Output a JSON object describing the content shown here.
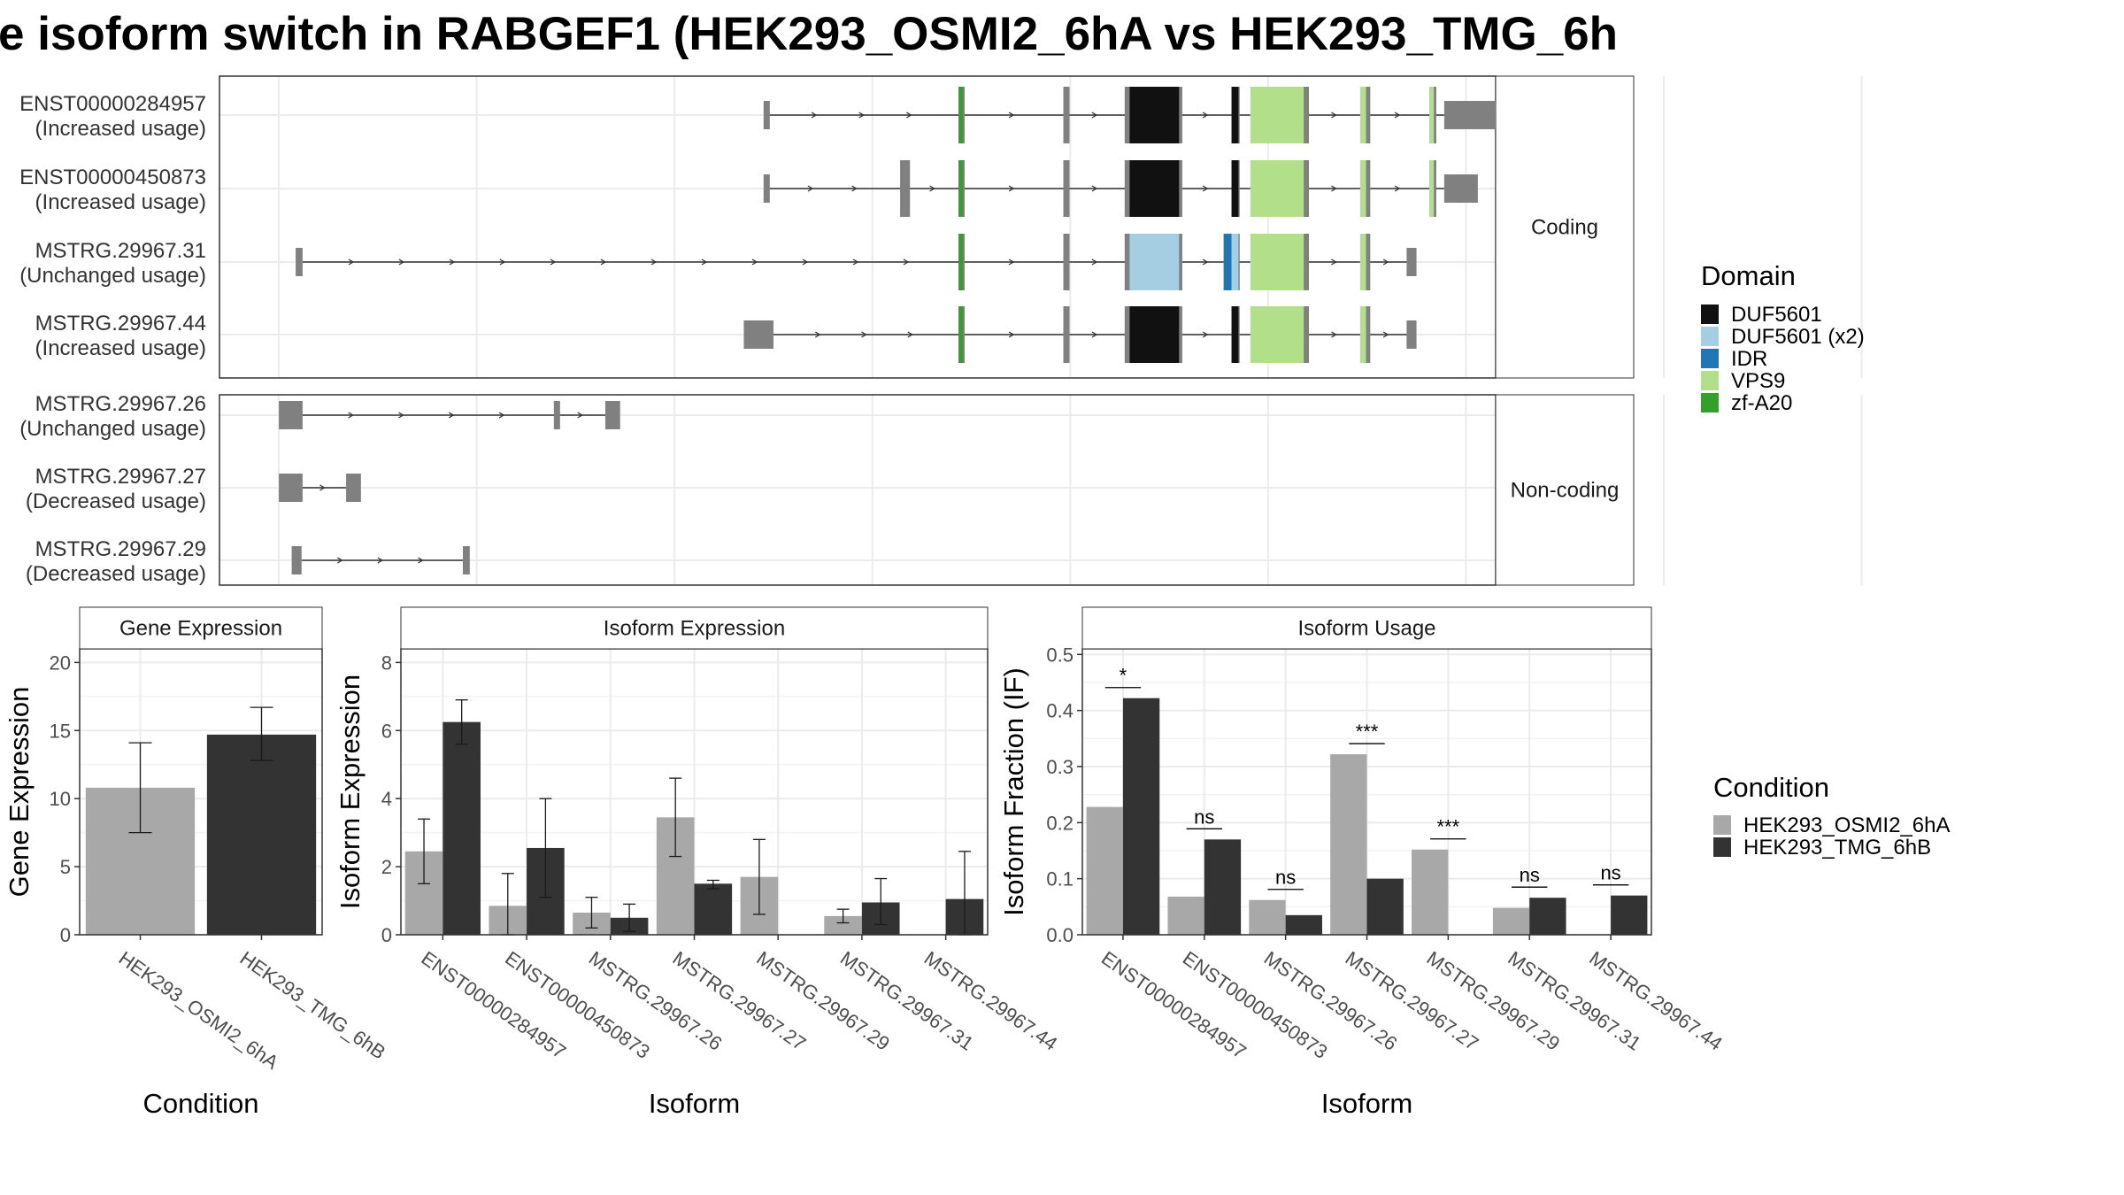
{
  "title": "e isoform switch in RABGEF1 (HEK293_OSMI2_6hA vs HEK293_TMG_6h",
  "colors": {
    "cond_a": "#a8a8a8",
    "cond_b": "#333333",
    "exon": "#808080",
    "DUF5601": "#111111",
    "DUF5601 (x2)": "#a6cee3",
    "IDR": "#1f78b4",
    "VPS9": "#b2df8a",
    "zf-A20": "#33a02c"
  },
  "structure": {
    "facets": [
      "Coding",
      "Non-coding"
    ],
    "x_breaks": [
      0.2,
      0.4,
      0.6,
      0.8,
      1.0,
      1.2,
      1.4,
      1.6,
      1.8
    ],
    "x_range": [
      0.14,
      1.43
    ],
    "transcripts": [
      {
        "id": "ENST00000284957",
        "usage": "(Increased usage)",
        "facet": "Coding",
        "exons": [
          [
            0.69,
            0.695
          ],
          [
            0.887,
            0.892
          ],
          [
            0.993,
            0.998
          ],
          [
            1.055,
            1.06
          ],
          [
            1.107,
            1.112
          ],
          [
            1.165,
            1.17
          ],
          [
            1.235,
            1.24
          ],
          [
            1.297,
            1.302
          ],
          [
            1.363,
            1.37
          ],
          [
            1.378,
            1.43
          ]
        ],
        "domains": [
          {
            "name": "zf-A20",
            "x": [
              0.887,
              0.891
            ]
          },
          {
            "name": "DUF5601",
            "x": [
              1.06,
              1.11
            ]
          },
          {
            "name": "DUF5601",
            "x": [
              1.163,
              1.17
            ]
          },
          {
            "name": "VPS9",
            "x": [
              1.182,
              1.236
            ]
          },
          {
            "name": "VPS9",
            "x": [
              1.293,
              1.299
            ]
          },
          {
            "name": "VPS9",
            "x": [
              1.363,
              1.366
            ]
          }
        ]
      },
      {
        "id": "ENST00000450873",
        "usage": "(Increased usage)",
        "facet": "Coding",
        "exons": [
          [
            0.69,
            0.695
          ],
          [
            0.828,
            0.838
          ],
          [
            0.887,
            0.892
          ],
          [
            0.993,
            0.998
          ],
          [
            1.055,
            1.06
          ],
          [
            1.107,
            1.112
          ],
          [
            1.165,
            1.17
          ],
          [
            1.235,
            1.24
          ],
          [
            1.297,
            1.302
          ],
          [
            1.363,
            1.37
          ],
          [
            1.378,
            1.412
          ]
        ],
        "domains": [
          {
            "name": "zf-A20",
            "x": [
              0.887,
              0.891
            ]
          },
          {
            "name": "DUF5601",
            "x": [
              1.06,
              1.11
            ]
          },
          {
            "name": "DUF5601",
            "x": [
              1.163,
              1.17
            ]
          },
          {
            "name": "VPS9",
            "x": [
              1.182,
              1.236
            ]
          },
          {
            "name": "VPS9",
            "x": [
              1.293,
              1.299
            ]
          },
          {
            "name": "VPS9",
            "x": [
              1.363,
              1.366
            ]
          }
        ]
      },
      {
        "id": "MSTRG.29967.31",
        "usage": "(Unchanged usage)",
        "facet": "Coding",
        "exons": [
          [
            0.217,
            0.224
          ],
          [
            0.887,
            0.892
          ],
          [
            0.993,
            0.998
          ],
          [
            1.055,
            1.06
          ],
          [
            1.107,
            1.112
          ],
          [
            1.165,
            1.17
          ],
          [
            1.235,
            1.24
          ],
          [
            1.297,
            1.302
          ],
          [
            1.34,
            1.35
          ]
        ],
        "domains": [
          {
            "name": "zf-A20",
            "x": [
              0.887,
              0.891
            ]
          },
          {
            "name": "DUF5601 (x2)",
            "x": [
              1.06,
              1.11
            ]
          },
          {
            "name": "IDR",
            "x": [
              1.155,
              1.165
            ]
          },
          {
            "name": "DUF5601 (x2)",
            "x": [
              1.163,
              1.17
            ]
          },
          {
            "name": "VPS9",
            "x": [
              1.182,
              1.236
            ]
          },
          {
            "name": "VPS9",
            "x": [
              1.293,
              1.299
            ]
          }
        ]
      },
      {
        "id": "MSTRG.29967.44",
        "usage": "(Increased usage)",
        "facet": "Coding",
        "exons": [
          [
            0.67,
            0.7
          ],
          [
            0.887,
            0.892
          ],
          [
            0.993,
            0.998
          ],
          [
            1.055,
            1.06
          ],
          [
            1.107,
            1.112
          ],
          [
            1.165,
            1.17
          ],
          [
            1.235,
            1.24
          ],
          [
            1.297,
            1.302
          ],
          [
            1.34,
            1.35
          ]
        ],
        "domains": [
          {
            "name": "zf-A20",
            "x": [
              0.887,
              0.891
            ]
          },
          {
            "name": "DUF5601",
            "x": [
              1.06,
              1.11
            ]
          },
          {
            "name": "DUF5601",
            "x": [
              1.163,
              1.17
            ]
          },
          {
            "name": "VPS9",
            "x": [
              1.182,
              1.236
            ]
          },
          {
            "name": "VPS9",
            "x": [
              1.293,
              1.299
            ]
          }
        ]
      },
      {
        "id": "MSTRG.29967.26",
        "usage": "(Unchanged usage)",
        "facet": "Non-coding",
        "exons": [
          [
            0.2,
            0.224
          ],
          [
            0.478,
            0.483
          ],
          [
            0.53,
            0.545
          ]
        ],
        "domains": []
      },
      {
        "id": "MSTRG.29967.27",
        "usage": "(Decreased usage)",
        "facet": "Non-coding",
        "exons": [
          [
            0.2,
            0.224
          ],
          [
            0.268,
            0.283
          ]
        ],
        "domains": []
      },
      {
        "id": "MSTRG.29967.29",
        "usage": "(Decreased usage)",
        "facet": "Non-coding",
        "exons": [
          [
            0.213,
            0.223
          ],
          [
            0.386,
            0.393
          ]
        ],
        "domains": []
      }
    ]
  },
  "legend_domain": {
    "title": "Domain",
    "items": [
      "DUF5601",
      "DUF5601 (x2)",
      "IDR",
      "VPS9",
      "zf-A20"
    ]
  },
  "legend_condition": {
    "title": "Condition",
    "items": [
      "HEK293_OSMI2_6hA",
      "HEK293_TMG_6hB"
    ]
  },
  "chart_data": [
    {
      "type": "bar",
      "title": "Gene Expression",
      "xlabel": "Condition",
      "ylabel": "Gene Expression",
      "categories": [
        "HEK293_OSMI2_6hA",
        "HEK293_TMG_6hB"
      ],
      "values": [
        10.8,
        14.7
      ],
      "errors": [
        [
          7.5,
          14.1
        ],
        [
          12.8,
          16.7
        ]
      ],
      "ylim": [
        0,
        21
      ],
      "yticks": [
        0,
        5,
        10,
        15,
        20
      ]
    },
    {
      "type": "bar",
      "title": "Isoform Expression",
      "xlabel": "Isoform",
      "ylabel": "Isoform Expression",
      "categories": [
        "ENST00000284957",
        "ENST00000450873",
        "MSTRG.29967.26",
        "MSTRG.29967.27",
        "MSTRG.29967.29",
        "MSTRG.29967.31",
        "MSTRG.29967.44"
      ],
      "series": [
        {
          "name": "HEK293_OSMI2_6hA",
          "values": [
            2.45,
            0.85,
            0.65,
            3.45,
            1.7,
            0.55,
            0.0
          ],
          "errors": [
            [
              1.5,
              3.4
            ],
            [
              0.0,
              1.8
            ],
            [
              0.2,
              1.1
            ],
            [
              2.3,
              4.6
            ],
            [
              0.6,
              2.8
            ],
            [
              0.35,
              0.75
            ],
            [
              0,
              0
            ]
          ]
        },
        {
          "name": "HEK293_TMG_6hB",
          "values": [
            6.25,
            2.55,
            0.5,
            1.5,
            0.0,
            0.95,
            1.05
          ],
          "errors": [
            [
              5.6,
              6.9
            ],
            [
              1.1,
              4.0
            ],
            [
              0.1,
              0.9
            ],
            [
              1.35,
              1.6
            ],
            [
              0,
              0
            ],
            [
              0.3,
              1.65
            ],
            [
              0,
              2.45
            ]
          ]
        }
      ],
      "ylim": [
        0,
        8.4
      ],
      "yticks": [
        0,
        2,
        4,
        6,
        8
      ]
    },
    {
      "type": "bar",
      "title": "Isoform Usage",
      "xlabel": "Isoform",
      "ylabel": "Isoform Fraction (IF)",
      "categories": [
        "ENST00000284957",
        "ENST00000450873",
        "MSTRG.29967.26",
        "MSTRG.29967.27",
        "MSTRG.29967.29",
        "MSTRG.29967.31",
        "MSTRG.29967.44"
      ],
      "series": [
        {
          "name": "HEK293_OSMI2_6hA",
          "values": [
            0.228,
            0.068,
            0.062,
            0.322,
            0.152,
            0.048,
            0.0
          ]
        },
        {
          "name": "HEK293_TMG_6hB",
          "values": [
            0.422,
            0.17,
            0.035,
            0.1,
            0.0,
            0.066,
            0.07
          ]
        }
      ],
      "significance": [
        "*",
        "ns",
        "ns",
        "***",
        "***",
        "ns",
        "ns"
      ],
      "ylim": [
        0,
        0.51
      ],
      "yticks": [
        0.0,
        0.1,
        0.2,
        0.3,
        0.4,
        0.5
      ],
      "ytick_labels": [
        "0.0",
        "0.1",
        "0.2",
        "0.3",
        "0.4",
        "0.5"
      ]
    }
  ]
}
